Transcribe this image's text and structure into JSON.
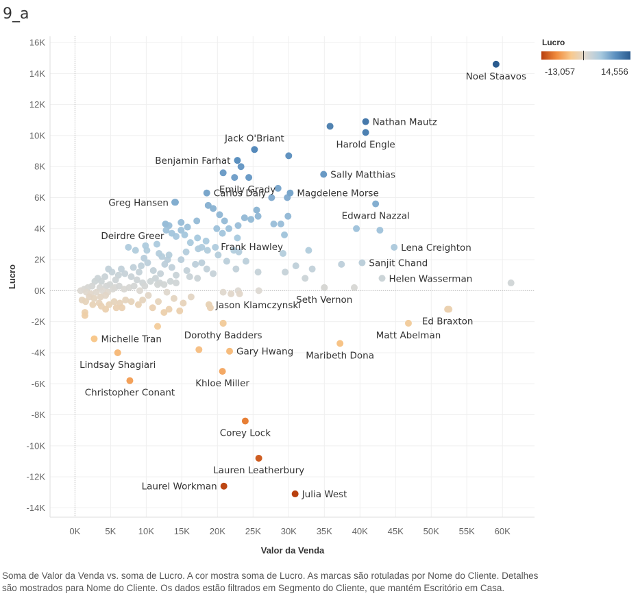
{
  "sheet": {
    "title": "9_a"
  },
  "legend": {
    "title": "Lucro",
    "min_label": "-13,057",
    "max_label": "14,556",
    "gradient_colors": [
      "#b8400f",
      "#f08a3c",
      "#f8c98e",
      "#ddd9d3",
      "#a8c9de",
      "#5a8fbf",
      "#2a5b8f"
    ]
  },
  "caption": "Soma de Valor da Venda vs. soma de Lucro.  A cor mostra soma de Lucro.  As marcas são rotuladas por Nome do Cliente.  Detalhes são mostrados para Nome do Cliente. Os dados estão filtrados em Segmento do Cliente, que mantém Escritório em Casa.",
  "chart_data": {
    "type": "scatter",
    "xlabel": "Valor da Venda",
    "ylabel": "Lucro",
    "xlim": [
      -3500,
      64500
    ],
    "ylim": [
      -14600,
      16400
    ],
    "x_ticks": [
      0,
      5000,
      10000,
      15000,
      20000,
      25000,
      30000,
      35000,
      40000,
      45000,
      50000,
      55000,
      60000
    ],
    "x_tick_labels": [
      "0K",
      "5K",
      "10K",
      "15K",
      "20K",
      "25K",
      "30K",
      "35K",
      "40K",
      "45K",
      "50K",
      "55K",
      "60K"
    ],
    "y_ticks": [
      -14000,
      -12000,
      -10000,
      -8000,
      -6000,
      -4000,
      -2000,
      0,
      2000,
      4000,
      6000,
      8000,
      10000,
      12000,
      14000,
      16000
    ],
    "y_tick_labels": [
      "-14K",
      "-12K",
      "-10K",
      "-8K",
      "-6K",
      "-4K",
      "-2K",
      "0K",
      "2K",
      "4K",
      "6K",
      "8K",
      "10K",
      "12K",
      "14K",
      "16K"
    ],
    "color_range": [
      -13057,
      14556
    ],
    "labeled_points": [
      {
        "name": "Noel Staavos",
        "x": 59100,
        "y": 14600,
        "pos": "below"
      },
      {
        "name": "Nathan Mautz",
        "x": 40800,
        "y": 10900,
        "pos": "right"
      },
      {
        "name": "Harold Engle",
        "x": 40800,
        "y": 10200,
        "pos": "below"
      },
      {
        "name": "Jack O'Briant",
        "x": 25200,
        "y": 9100,
        "pos": "above"
      },
      {
        "name": "Benjamin Farhat",
        "x": 22800,
        "y": 8400,
        "pos": "left"
      },
      {
        "name": "Emily Grady",
        "x": 24400,
        "y": 7300,
        "pos": "belowright"
      },
      {
        "name": "Sally Matthias",
        "x": 34900,
        "y": 7500,
        "pos": "right"
      },
      {
        "name": "Carlos Daly",
        "x": 18500,
        "y": 6300,
        "pos": "right"
      },
      {
        "name": "Magdelene Morse",
        "x": 30200,
        "y": 6300,
        "pos": "right"
      },
      {
        "name": "Greg Hansen",
        "x": 14100,
        "y": 5700,
        "pos": "left"
      },
      {
        "name": "Edward Nazzal",
        "x": 42200,
        "y": 5600,
        "pos": "below"
      },
      {
        "name": "Deirdre Greer",
        "x": 12700,
        "y": 4300,
        "pos": "belowleft"
      },
      {
        "name": "Frank Hawley",
        "x": 29400,
        "y": 3600,
        "pos": "belowleft"
      },
      {
        "name": "Lena Creighton",
        "x": 44800,
        "y": 2800,
        "pos": "right"
      },
      {
        "name": "Sanjit Chand",
        "x": 40300,
        "y": 1800,
        "pos": "right"
      },
      {
        "name": "Helen Wasserman",
        "x": 43100,
        "y": 800,
        "pos": "right"
      },
      {
        "name": "Seth Vernon",
        "x": 35000,
        "y": 200,
        "pos": "below"
      },
      {
        "name": "Jason Klamczynski",
        "x": 18800,
        "y": -900,
        "pos": "right"
      },
      {
        "name": "Ed Braxton",
        "x": 52300,
        "y": -1200,
        "pos": "below"
      },
      {
        "name": "Matt Abelman",
        "x": 46800,
        "y": -2100,
        "pos": "below"
      },
      {
        "name": "Michelle Tran",
        "x": 2700,
        "y": -3100,
        "pos": "right"
      },
      {
        "name": "Dorothy Badders",
        "x": 20800,
        "y": -2100,
        "pos": "below"
      },
      {
        "name": "Gary Hwang",
        "x": 21700,
        "y": -3900,
        "pos": "right"
      },
      {
        "name": "Maribeth Dona",
        "x": 37200,
        "y": -3400,
        "pos": "below"
      },
      {
        "name": "Lindsay Shagiari",
        "x": 6000,
        "y": -4000,
        "pos": "below"
      },
      {
        "name": "Khloe Miller",
        "x": 20700,
        "y": -5200,
        "pos": "below"
      },
      {
        "name": "Christopher Conant",
        "x": 7700,
        "y": -5800,
        "pos": "below"
      },
      {
        "name": "Corey Lock",
        "x": 23900,
        "y": -8400,
        "pos": "below"
      },
      {
        "name": "Lauren Leatherbury",
        "x": 25800,
        "y": -10800,
        "pos": "below"
      },
      {
        "name": "Laurel Workman",
        "x": 20900,
        "y": -12600,
        "pos": "left"
      },
      {
        "name": "Julia West",
        "x": 30900,
        "y": -13100,
        "pos": "right"
      }
    ],
    "unlabeled_points": [
      {
        "x": 61200,
        "y": 500
      },
      {
        "x": 52500,
        "y": -1200
      },
      {
        "x": 14000,
        "y": 5700
      },
      {
        "x": 18700,
        "y": 5500
      },
      {
        "x": 19400,
        "y": 5300
      },
      {
        "x": 20300,
        "y": 4900
      },
      {
        "x": 24700,
        "y": 4600
      },
      {
        "x": 23800,
        "y": 4700
      },
      {
        "x": 25700,
        "y": 4800
      },
      {
        "x": 25500,
        "y": 5200
      },
      {
        "x": 27600,
        "y": 6000
      },
      {
        "x": 28500,
        "y": 6600
      },
      {
        "x": 29800,
        "y": 6000
      },
      {
        "x": 29900,
        "y": 4800
      },
      {
        "x": 27900,
        "y": 4300
      },
      {
        "x": 28900,
        "y": 4300
      },
      {
        "x": 30000,
        "y": 8700
      },
      {
        "x": 23300,
        "y": 8000
      },
      {
        "x": 20800,
        "y": 7600
      },
      {
        "x": 22400,
        "y": 7300
      },
      {
        "x": 35800,
        "y": 10600
      },
      {
        "x": 39500,
        "y": 4000
      },
      {
        "x": 42800,
        "y": 3900
      },
      {
        "x": 21000,
        "y": 4500
      },
      {
        "x": 21600,
        "y": 4000
      },
      {
        "x": 19900,
        "y": 4000
      },
      {
        "x": 20700,
        "y": 3700
      },
      {
        "x": 22900,
        "y": 4200
      },
      {
        "x": 17100,
        "y": 4500
      },
      {
        "x": 15800,
        "y": 4100
      },
      {
        "x": 14900,
        "y": 4400
      },
      {
        "x": 14900,
        "y": 3900
      },
      {
        "x": 14200,
        "y": 3500
      },
      {
        "x": 13200,
        "y": 4200
      },
      {
        "x": 12800,
        "y": 3900
      },
      {
        "x": 13600,
        "y": 3700
      },
      {
        "x": 15400,
        "y": 3600
      },
      {
        "x": 16200,
        "y": 3100
      },
      {
        "x": 17200,
        "y": 3400
      },
      {
        "x": 18400,
        "y": 3200
      },
      {
        "x": 19700,
        "y": 2800
      },
      {
        "x": 22800,
        "y": 3400
      },
      {
        "x": 22300,
        "y": 2600
      },
      {
        "x": 23000,
        "y": 2500
      },
      {
        "x": 18600,
        "y": 2600
      },
      {
        "x": 17800,
        "y": 2800
      },
      {
        "x": 17300,
        "y": 2700
      },
      {
        "x": 20100,
        "y": 2300
      },
      {
        "x": 21300,
        "y": 1900
      },
      {
        "x": 22600,
        "y": 1400
      },
      {
        "x": 24000,
        "y": 1900
      },
      {
        "x": 25700,
        "y": 1200
      },
      {
        "x": 29200,
        "y": 2400
      },
      {
        "x": 29500,
        "y": 1200
      },
      {
        "x": 31000,
        "y": 1600
      },
      {
        "x": 32800,
        "y": 2600
      },
      {
        "x": 33300,
        "y": 1400
      },
      {
        "x": 32300,
        "y": 800
      },
      {
        "x": 37400,
        "y": 1700
      },
      {
        "x": 15700,
        "y": 1300
      },
      {
        "x": 14900,
        "y": 2000
      },
      {
        "x": 15600,
        "y": 2500
      },
      {
        "x": 16900,
        "y": 1700
      },
      {
        "x": 17800,
        "y": 1800
      },
      {
        "x": 18500,
        "y": 1400
      },
      {
        "x": 19400,
        "y": 1100
      },
      {
        "x": 16100,
        "y": 900
      },
      {
        "x": 17200,
        "y": 800
      },
      {
        "x": 14200,
        "y": 1000
      },
      {
        "x": 13600,
        "y": 1500
      },
      {
        "x": 13000,
        "y": 2000
      },
      {
        "x": 12600,
        "y": 1700
      },
      {
        "x": 12200,
        "y": 2200
      },
      {
        "x": 11800,
        "y": 2400
      },
      {
        "x": 11500,
        "y": 3000
      },
      {
        "x": 10100,
        "y": 2600
      },
      {
        "x": 9900,
        "y": 2900
      },
      {
        "x": 9700,
        "y": 2100
      },
      {
        "x": 8500,
        "y": 2600
      },
      {
        "x": 7500,
        "y": 2800
      },
      {
        "x": 8200,
        "y": 1500
      },
      {
        "x": 9300,
        "y": 1600
      },
      {
        "x": 9000,
        "y": 1200
      },
      {
        "x": 10200,
        "y": 1800
      },
      {
        "x": 11000,
        "y": 1300
      },
      {
        "x": 11300,
        "y": 800
      },
      {
        "x": 12000,
        "y": 1100
      },
      {
        "x": 13200,
        "y": 2300
      },
      {
        "x": 10600,
        "y": 600
      },
      {
        "x": 11900,
        "y": 500
      },
      {
        "x": 12500,
        "y": 400
      },
      {
        "x": 13400,
        "y": 600
      },
      {
        "x": 14200,
        "y": 500
      },
      {
        "x": 9500,
        "y": 500
      },
      {
        "x": 8700,
        "y": 700
      },
      {
        "x": 7900,
        "y": 900
      },
      {
        "x": 7000,
        "y": 1100
      },
      {
        "x": 6500,
        "y": 1400
      },
      {
        "x": 6100,
        "y": 1000
      },
      {
        "x": 5700,
        "y": 700
      },
      {
        "x": 5200,
        "y": 1200
      },
      {
        "x": 4700,
        "y": 1400
      },
      {
        "x": 4200,
        "y": 900
      },
      {
        "x": 3700,
        "y": 600
      },
      {
        "x": 3200,
        "y": 800
      },
      {
        "x": 2800,
        "y": 600
      },
      {
        "x": 4900,
        "y": 400
      },
      {
        "x": 5600,
        "y": 200
      },
      {
        "x": 4400,
        "y": 300
      },
      {
        "x": 3500,
        "y": 200
      },
      {
        "x": 2400,
        "y": 300
      },
      {
        "x": 1800,
        "y": 200
      },
      {
        "x": 1300,
        "y": 100
      },
      {
        "x": 800,
        "y": 0
      },
      {
        "x": 1600,
        "y": -100
      },
      {
        "x": 2200,
        "y": -200
      },
      {
        "x": 3000,
        "y": -100
      },
      {
        "x": 3900,
        "y": 0
      },
      {
        "x": 4600,
        "y": -100
      },
      {
        "x": 5300,
        "y": 100
      },
      {
        "x": 6200,
        "y": 300
      },
      {
        "x": 6900,
        "y": 100
      },
      {
        "x": 7600,
        "y": 200
      },
      {
        "x": 8300,
        "y": 300
      },
      {
        "x": 9100,
        "y": 0
      },
      {
        "x": 2000,
        "y": -400
      },
      {
        "x": 2700,
        "y": -500
      },
      {
        "x": 3600,
        "y": -400
      },
      {
        "x": 4300,
        "y": -300
      },
      {
        "x": 1000,
        "y": -600
      },
      {
        "x": 1500,
        "y": -700
      },
      {
        "x": 2500,
        "y": -900
      },
      {
        "x": 3400,
        "y": -800
      },
      {
        "x": 4800,
        "y": -900
      },
      {
        "x": 5500,
        "y": -700
      },
      {
        "x": 6300,
        "y": -800
      },
      {
        "x": 7100,
        "y": -600
      },
      {
        "x": 7900,
        "y": -700
      },
      {
        "x": 6600,
        "y": -1100
      },
      {
        "x": 5800,
        "y": -1100
      },
      {
        "x": 4300,
        "y": -1200
      },
      {
        "x": 3700,
        "y": -1000
      },
      {
        "x": 1400,
        "y": -1400
      },
      {
        "x": 1400,
        "y": -1600
      },
      {
        "x": 8900,
        "y": -900
      },
      {
        "x": 9500,
        "y": -600
      },
      {
        "x": 10900,
        "y": -1100
      },
      {
        "x": 11700,
        "y": -700
      },
      {
        "x": 12500,
        "y": -1400
      },
      {
        "x": 13200,
        "y": -1200
      },
      {
        "x": 13900,
        "y": -500
      },
      {
        "x": 14700,
        "y": -1300
      },
      {
        "x": 15200,
        "y": -800
      },
      {
        "x": 16300,
        "y": -400
      },
      {
        "x": 19000,
        "y": -1100
      },
      {
        "x": 11600,
        "y": -2300
      },
      {
        "x": 20800,
        "y": -2100
      },
      {
        "x": 17400,
        "y": -3800
      },
      {
        "x": 20800,
        "y": -100
      },
      {
        "x": 21900,
        "y": -200
      },
      {
        "x": 22900,
        "y": 0
      },
      {
        "x": 23100,
        "y": -200
      },
      {
        "x": 25800,
        "y": 0
      },
      {
        "x": 35000,
        "y": 200
      },
      {
        "x": 39200,
        "y": 200
      },
      {
        "x": 11600,
        "y": 400
      },
      {
        "x": 12900,
        "y": -100
      },
      {
        "x": 10300,
        "y": -300
      },
      {
        "x": 9800,
        "y": 300
      }
    ]
  }
}
